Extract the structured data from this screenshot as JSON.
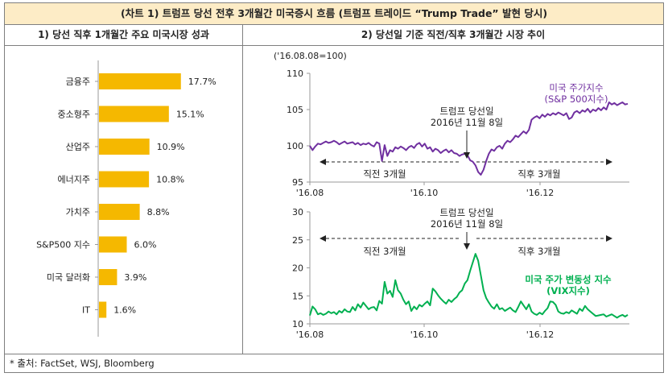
{
  "page": {
    "title": "(차트 1) 트럼프 당선 전후 3개월간 미국증시 흐름 (트럼프 트레이드 “Trump Trade” 발현 당시)",
    "source": "* 출처: FactSet, WSJ, Bloomberg"
  },
  "colors": {
    "bar": "#f5b800",
    "spx": "#7030a0",
    "vix": "#00b050",
    "header_bg": "#fdecc6"
  },
  "chart_data": [
    {
      "type": "bar",
      "title": "1) 당선 직후 1개월간 주요 미국시장 성과",
      "orientation": "horizontal",
      "categories": [
        "금융주",
        "중소형주",
        "산업주",
        "에너지주",
        "가치주",
        "S&P500 지수",
        "미국 달러화",
        "IT"
      ],
      "values": [
        17.7,
        15.1,
        10.9,
        10.8,
        8.8,
        6.0,
        3.9,
        1.6
      ],
      "value_labels": [
        "17.7%",
        "15.1%",
        "10.9%",
        "10.8%",
        "8.8%",
        "6.0%",
        "3.9%",
        "1.6%"
      ],
      "xlim": [
        0,
        20
      ],
      "grid": false
    },
    {
      "type": "line",
      "title": "2) 당선일 기준 직전/직후 3개월간 시장 추이",
      "unit_note": "('16.08.08=100)",
      "ylim": [
        95,
        110
      ],
      "yticks": [
        95,
        100,
        105,
        110
      ],
      "xticks": [
        "'16.08",
        "'16.10",
        "'16.12"
      ],
      "series": [
        {
          "name": "미국 주가지수 (S&P 500지수)",
          "values": [
            100,
            99.4,
            99.9,
            100.3,
            100.2,
            100.4,
            100.6,
            100.4,
            100.5,
            100.7,
            100.5,
            100.2,
            100.4,
            100.6,
            100.3,
            100.4,
            100.5,
            100.2,
            100.4,
            100.1,
            100.3,
            100.2,
            100.4,
            100.1,
            99.9,
            100.5,
            100.3,
            97.9,
            100.1,
            98.6,
            99.4,
            99.2,
            99.8,
            99.6,
            99.9,
            99.7,
            99.4,
            99.8,
            100.0,
            99.7,
            100.2,
            100.4,
            99.9,
            100.3,
            99.6,
            99.8,
            99.2,
            99.6,
            99.4,
            99.0,
            99.3,
            99.5,
            99.1,
            99.4,
            99.0,
            98.9,
            98.6,
            98.8,
            98.9,
            98.7,
            98.0,
            97.8,
            97.3,
            96.4,
            96.0,
            96.7,
            97.9,
            98.9,
            99.5,
            99.3,
            99.8,
            100.0,
            99.6,
            100.3,
            100.7,
            100.5,
            100.9,
            101.4,
            101.2,
            101.6,
            102.0,
            101.7,
            102.2,
            103.6,
            103.9,
            104.1,
            103.8,
            104.3,
            104.0,
            104.4,
            104.2,
            104.5,
            104.3,
            104.6,
            104.4,
            104.2,
            104.5,
            103.7,
            103.9,
            104.6,
            104.8,
            104.5,
            104.9,
            104.7,
            105.1,
            104.6,
            105.0,
            104.8,
            105.2,
            104.9,
            105.3,
            105.0,
            106.0,
            105.7,
            105.9,
            105.6,
            105.8,
            106.0,
            105.7,
            105.8
          ]
        }
      ],
      "annotations": [
        "트럼프 당선일",
        "2016년 11월 8일",
        "직전 3개월",
        "직후 3개월"
      ]
    },
    {
      "type": "line",
      "ylim": [
        10,
        30
      ],
      "yticks": [
        10,
        15,
        20,
        25,
        30
      ],
      "xticks": [
        "'16.08",
        "'16.10",
        "'16.12"
      ],
      "series": [
        {
          "name": "미국 주가 변동성 지수 (VIX지수)",
          "values": [
            11.5,
            13.1,
            12.6,
            11.7,
            11.9,
            11.6,
            11.8,
            12.2,
            11.9,
            12.1,
            11.7,
            12.3,
            12.0,
            12.6,
            12.2,
            12.1,
            13.0,
            12.4,
            13.5,
            12.9,
            13.8,
            13.2,
            12.6,
            12.9,
            13.0,
            12.4,
            14.1,
            13.6,
            17.5,
            15.4,
            15.9,
            14.8,
            17.8,
            16.0,
            15.4,
            14.3,
            13.5,
            14.0,
            12.3,
            13.1,
            12.6,
            13.4,
            13.1,
            13.6,
            14.0,
            13.3,
            16.3,
            15.8,
            15.1,
            14.5,
            14.0,
            13.6,
            14.3,
            13.9,
            14.4,
            14.8,
            15.6,
            16.0,
            17.2,
            17.8,
            19.5,
            21.0,
            22.5,
            21.3,
            18.7,
            16.0,
            14.6,
            13.8,
            13.1,
            12.7,
            13.5,
            12.6,
            12.8,
            12.3,
            12.6,
            12.9,
            12.4,
            12.1,
            13.0,
            14.0,
            13.3,
            12.6,
            13.5,
            12.2,
            11.8,
            11.6,
            12.0,
            11.7,
            12.3,
            12.8,
            14.0,
            13.9,
            13.4,
            12.2,
            11.9,
            11.8,
            12.1,
            11.9,
            12.4,
            12.1,
            11.8,
            12.7,
            12.3,
            13.2,
            12.6,
            12.2,
            11.8,
            11.4,
            11.5,
            11.6,
            11.7,
            11.3,
            11.5,
            11.7,
            11.4,
            11.1,
            11.4,
            11.6,
            11.3,
            11.6
          ]
        }
      ],
      "annotations": [
        "트럼프 당선일",
        "2016년 11월 8일",
        "직전 3개월",
        "직후 3개월"
      ]
    }
  ]
}
